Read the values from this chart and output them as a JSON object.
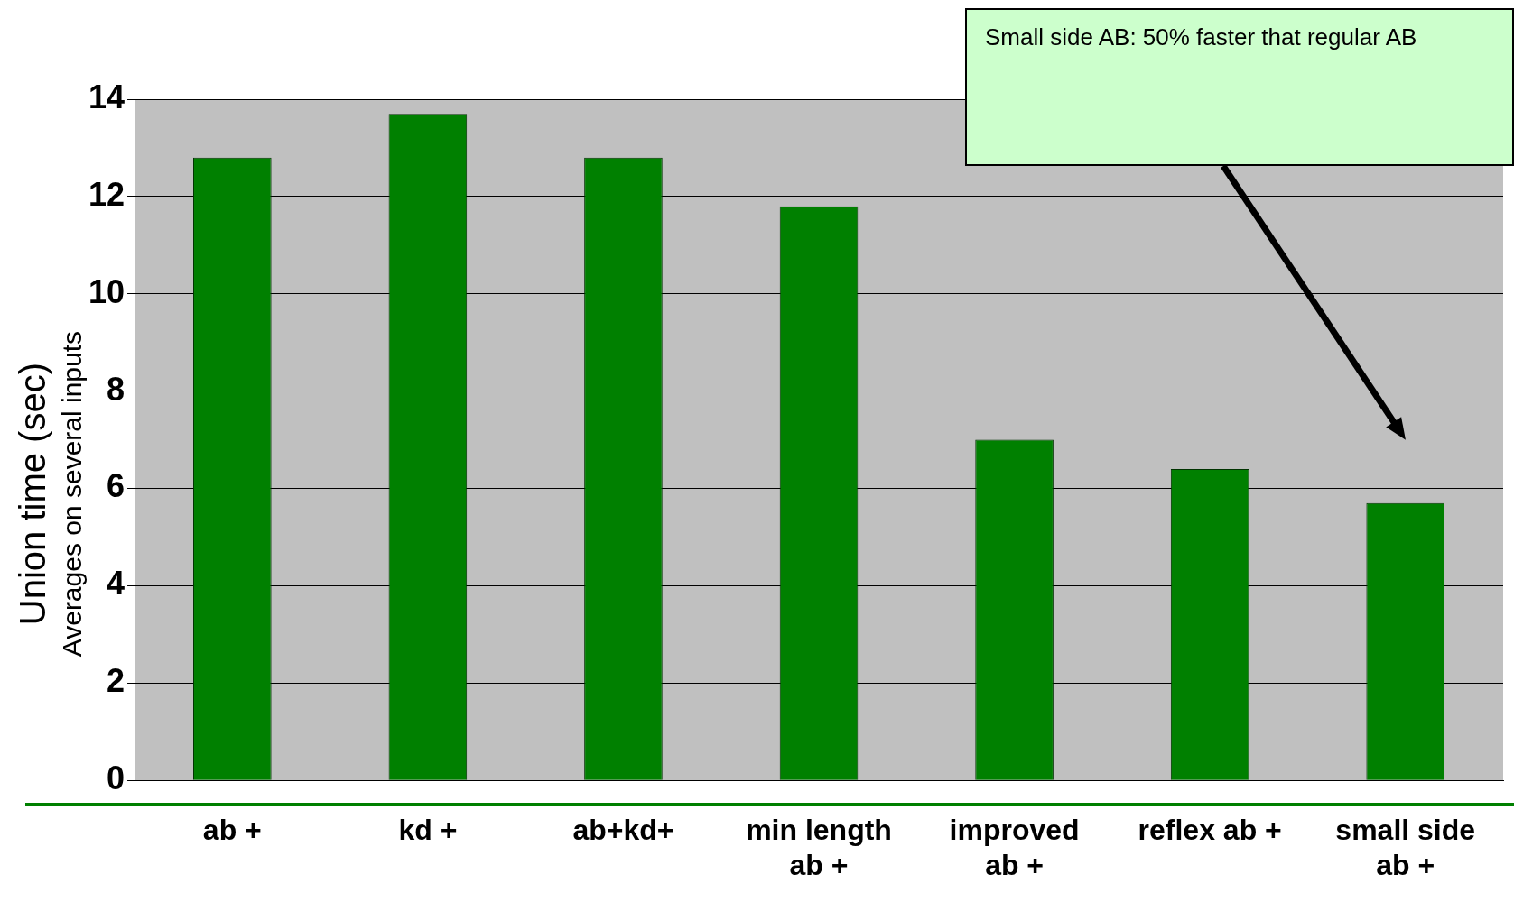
{
  "chart_data": {
    "type": "bar",
    "ylabel": "Union time (sec)\nAverages on several inputs",
    "categories": [
      "ab +",
      "kd +",
      "ab+kd+",
      "min length ab +",
      "improved ab +",
      "reflex ab +",
      "small side ab +"
    ],
    "values": [
      12.8,
      13.7,
      12.8,
      11.8,
      7.0,
      6.4,
      5.7
    ],
    "color": "#008000",
    "ylim": [
      0,
      14
    ],
    "yticks": [
      0,
      2,
      4,
      6,
      8,
      10,
      12,
      14
    ],
    "grid": "y",
    "legend": false,
    "annotations": [
      "Small side AB: 50% faster that regular AB"
    ]
  }
}
